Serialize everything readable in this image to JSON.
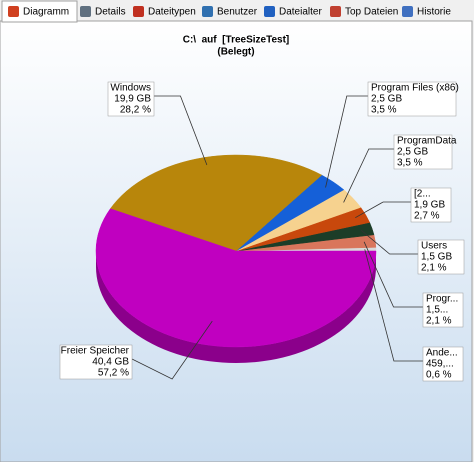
{
  "tabs": [
    "Diagramm",
    "Details",
    "Dateitypen",
    "Benutzer",
    "Dateialter",
    "Top Dateien",
    "Historie"
  ],
  "chart_data": {
    "type": "pie",
    "title": "C:\\  auf  [TreeSizeTest]",
    "subtitle": "(Belegt)",
    "categories": [
      "Ande...",
      "Progr...",
      "Users",
      "[2...",
      "ProgramData",
      "Program Files (x86)",
      "Windows",
      "Freier Speicher"
    ],
    "size_labels": [
      "459,...",
      "1,5...",
      "1,5 GB",
      "1,9 GB",
      "2,5 GB",
      "2,5 GB",
      "19,9 GB",
      "40,4 GB"
    ],
    "values": [
      0.6,
      2.1,
      2.1,
      2.7,
      3.5,
      3.5,
      28.2,
      57.2
    ],
    "value_labels": [
      "0,6 %",
      "2,1 %",
      "2,1 %",
      "2,7 %",
      "3,5 %",
      "3,5 %",
      "28,2 %",
      "57,2 %"
    ],
    "colors": [
      "#d9d9d9",
      "#d9765c",
      "#1c3d28",
      "#c8480c",
      "#f6d28f",
      "#1560d8",
      "#b8860b",
      "#c000c0"
    ]
  }
}
